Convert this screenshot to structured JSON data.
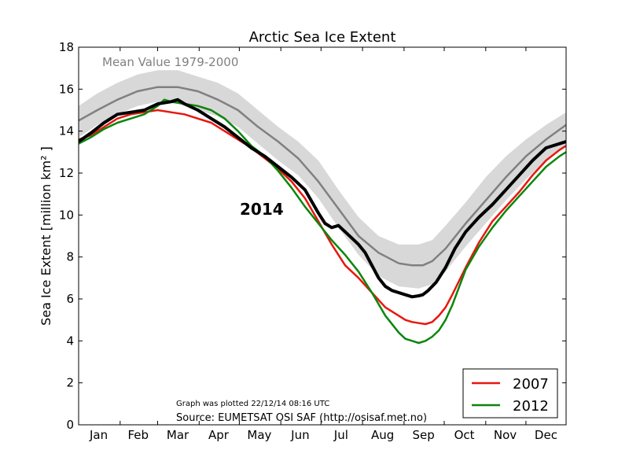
{
  "chart_data": {
    "type": "line",
    "title": "Arctic Sea Ice Extent",
    "ylabel": "Sea Ice Extent [million km² ]",
    "xlabel": "",
    "ylim": [
      0,
      18
    ],
    "xlim": [
      1,
      365
    ],
    "yticks": [
      0,
      2,
      4,
      6,
      8,
      10,
      12,
      14,
      16,
      18
    ],
    "x_categories": [
      "Jan",
      "Feb",
      "Mar",
      "Apr",
      "May",
      "Jun",
      "Jul",
      "Aug",
      "Sep",
      "Oct",
      "Nov",
      "Dec"
    ],
    "x_category_centers": [
      16,
      45.5,
      75,
      105.5,
      136,
      166.5,
      197,
      228,
      258.5,
      289,
      319.5,
      350
    ],
    "grid": false,
    "legend_position": "bottom-right",
    "mean_label": "Mean Value 1979-2000",
    "annotation_year": "2014",
    "plotted_note": "Graph was plotted 22/12/14 08:16 UTC",
    "source_note": "Source: EUMETSAT OSI SAF (http://osisaf.met.no)",
    "colors": {
      "band": "#d8d8d8",
      "mean": "#808080",
      "y2014": "#000000",
      "y2007": "#e8170f",
      "y2012": "#0b860b"
    },
    "band": {
      "x": [
        1,
        15,
        30,
        45,
        60,
        75,
        90,
        105,
        120,
        135,
        150,
        165,
        180,
        195,
        210,
        225,
        240,
        255,
        265,
        275,
        290,
        305,
        320,
        335,
        350,
        365
      ],
      "lower": [
        13.7,
        14.3,
        14.8,
        15.2,
        15.4,
        15.3,
        15.0,
        14.7,
        14.2,
        13.4,
        12.6,
        11.9,
        10.8,
        9.4,
        8.1,
        7.1,
        6.6,
        6.5,
        6.7,
        7.3,
        8.5,
        9.6,
        10.7,
        11.7,
        12.6,
        13.3
      ],
      "upper": [
        15.2,
        15.8,
        16.3,
        16.7,
        16.9,
        16.9,
        16.6,
        16.3,
        15.8,
        15.0,
        14.2,
        13.5,
        12.6,
        11.2,
        9.9,
        9.0,
        8.6,
        8.6,
        8.8,
        9.5,
        10.6,
        11.8,
        12.8,
        13.6,
        14.3,
        14.9
      ]
    },
    "series": [
      {
        "name": "mean",
        "x": [
          1,
          15,
          30,
          45,
          60,
          75,
          90,
          105,
          120,
          135,
          150,
          165,
          180,
          195,
          210,
          225,
          240,
          250,
          258,
          265,
          275,
          290,
          305,
          320,
          335,
          350,
          365
        ],
        "values": [
          14.5,
          15.0,
          15.5,
          15.9,
          16.1,
          16.1,
          15.9,
          15.5,
          15.0,
          14.2,
          13.5,
          12.7,
          11.6,
          10.3,
          9.0,
          8.2,
          7.7,
          7.6,
          7.6,
          7.8,
          8.4,
          9.6,
          10.7,
          11.8,
          12.8,
          13.6,
          14.3
        ]
      },
      {
        "name": "2014",
        "x": [
          1,
          10,
          20,
          30,
          40,
          50,
          60,
          70,
          75,
          80,
          90,
          100,
          110,
          120,
          130,
          140,
          150,
          160,
          170,
          180,
          185,
          190,
          195,
          200,
          205,
          210,
          215,
          220,
          225,
          230,
          235,
          240,
          245,
          250,
          255,
          258,
          262,
          268,
          275,
          282,
          290,
          300,
          310,
          320,
          330,
          340,
          350,
          360,
          365
        ],
        "values": [
          13.5,
          13.9,
          14.4,
          14.8,
          14.9,
          15.0,
          15.3,
          15.4,
          15.5,
          15.3,
          15.0,
          14.6,
          14.2,
          13.7,
          13.2,
          12.8,
          12.3,
          11.8,
          11.2,
          10.1,
          9.6,
          9.4,
          9.5,
          9.2,
          8.9,
          8.6,
          8.2,
          7.6,
          7.0,
          6.6,
          6.4,
          6.3,
          6.2,
          6.1,
          6.15,
          6.2,
          6.4,
          6.8,
          7.5,
          8.4,
          9.2,
          9.9,
          10.5,
          11.2,
          11.9,
          12.6,
          13.2,
          13.4,
          13.5
        ]
      },
      {
        "name": "2007",
        "x": [
          1,
          10,
          20,
          30,
          40,
          50,
          60,
          70,
          80,
          90,
          100,
          110,
          120,
          130,
          140,
          150,
          160,
          170,
          180,
          190,
          200,
          210,
          220,
          230,
          240,
          245,
          250,
          255,
          260,
          265,
          270,
          275,
          280,
          290,
          300,
          310,
          320,
          330,
          340,
          350,
          360,
          365
        ],
        "values": [
          13.6,
          13.8,
          14.2,
          14.6,
          14.8,
          14.9,
          15.0,
          14.9,
          14.8,
          14.6,
          14.4,
          14.0,
          13.6,
          13.2,
          12.7,
          12.2,
          11.6,
          10.8,
          9.7,
          8.6,
          7.6,
          7.0,
          6.3,
          5.6,
          5.2,
          5.0,
          4.9,
          4.85,
          4.8,
          4.9,
          5.2,
          5.6,
          6.2,
          7.5,
          8.7,
          9.7,
          10.4,
          11.1,
          11.9,
          12.6,
          13.1,
          13.3
        ]
      },
      {
        "name": "2012",
        "x": [
          1,
          10,
          20,
          30,
          40,
          50,
          60,
          65,
          70,
          80,
          90,
          100,
          110,
          120,
          130,
          140,
          150,
          160,
          170,
          180,
          190,
          200,
          210,
          220,
          230,
          240,
          245,
          250,
          255,
          260,
          265,
          270,
          275,
          280,
          290,
          300,
          310,
          320,
          330,
          340,
          350,
          360,
          365
        ],
        "values": [
          13.4,
          13.7,
          14.1,
          14.4,
          14.6,
          14.8,
          15.2,
          15.5,
          15.4,
          15.3,
          15.2,
          15.0,
          14.6,
          14.0,
          13.3,
          12.8,
          12.1,
          11.3,
          10.4,
          9.6,
          8.8,
          8.1,
          7.3,
          6.3,
          5.2,
          4.4,
          4.1,
          4.0,
          3.9,
          4.0,
          4.2,
          4.5,
          5.0,
          5.7,
          7.4,
          8.5,
          9.4,
          10.2,
          10.9,
          11.6,
          12.3,
          12.8,
          13.0
        ]
      }
    ],
    "legend": [
      {
        "label": "2007",
        "series": "2007"
      },
      {
        "label": "2012",
        "series": "2012"
      }
    ]
  }
}
